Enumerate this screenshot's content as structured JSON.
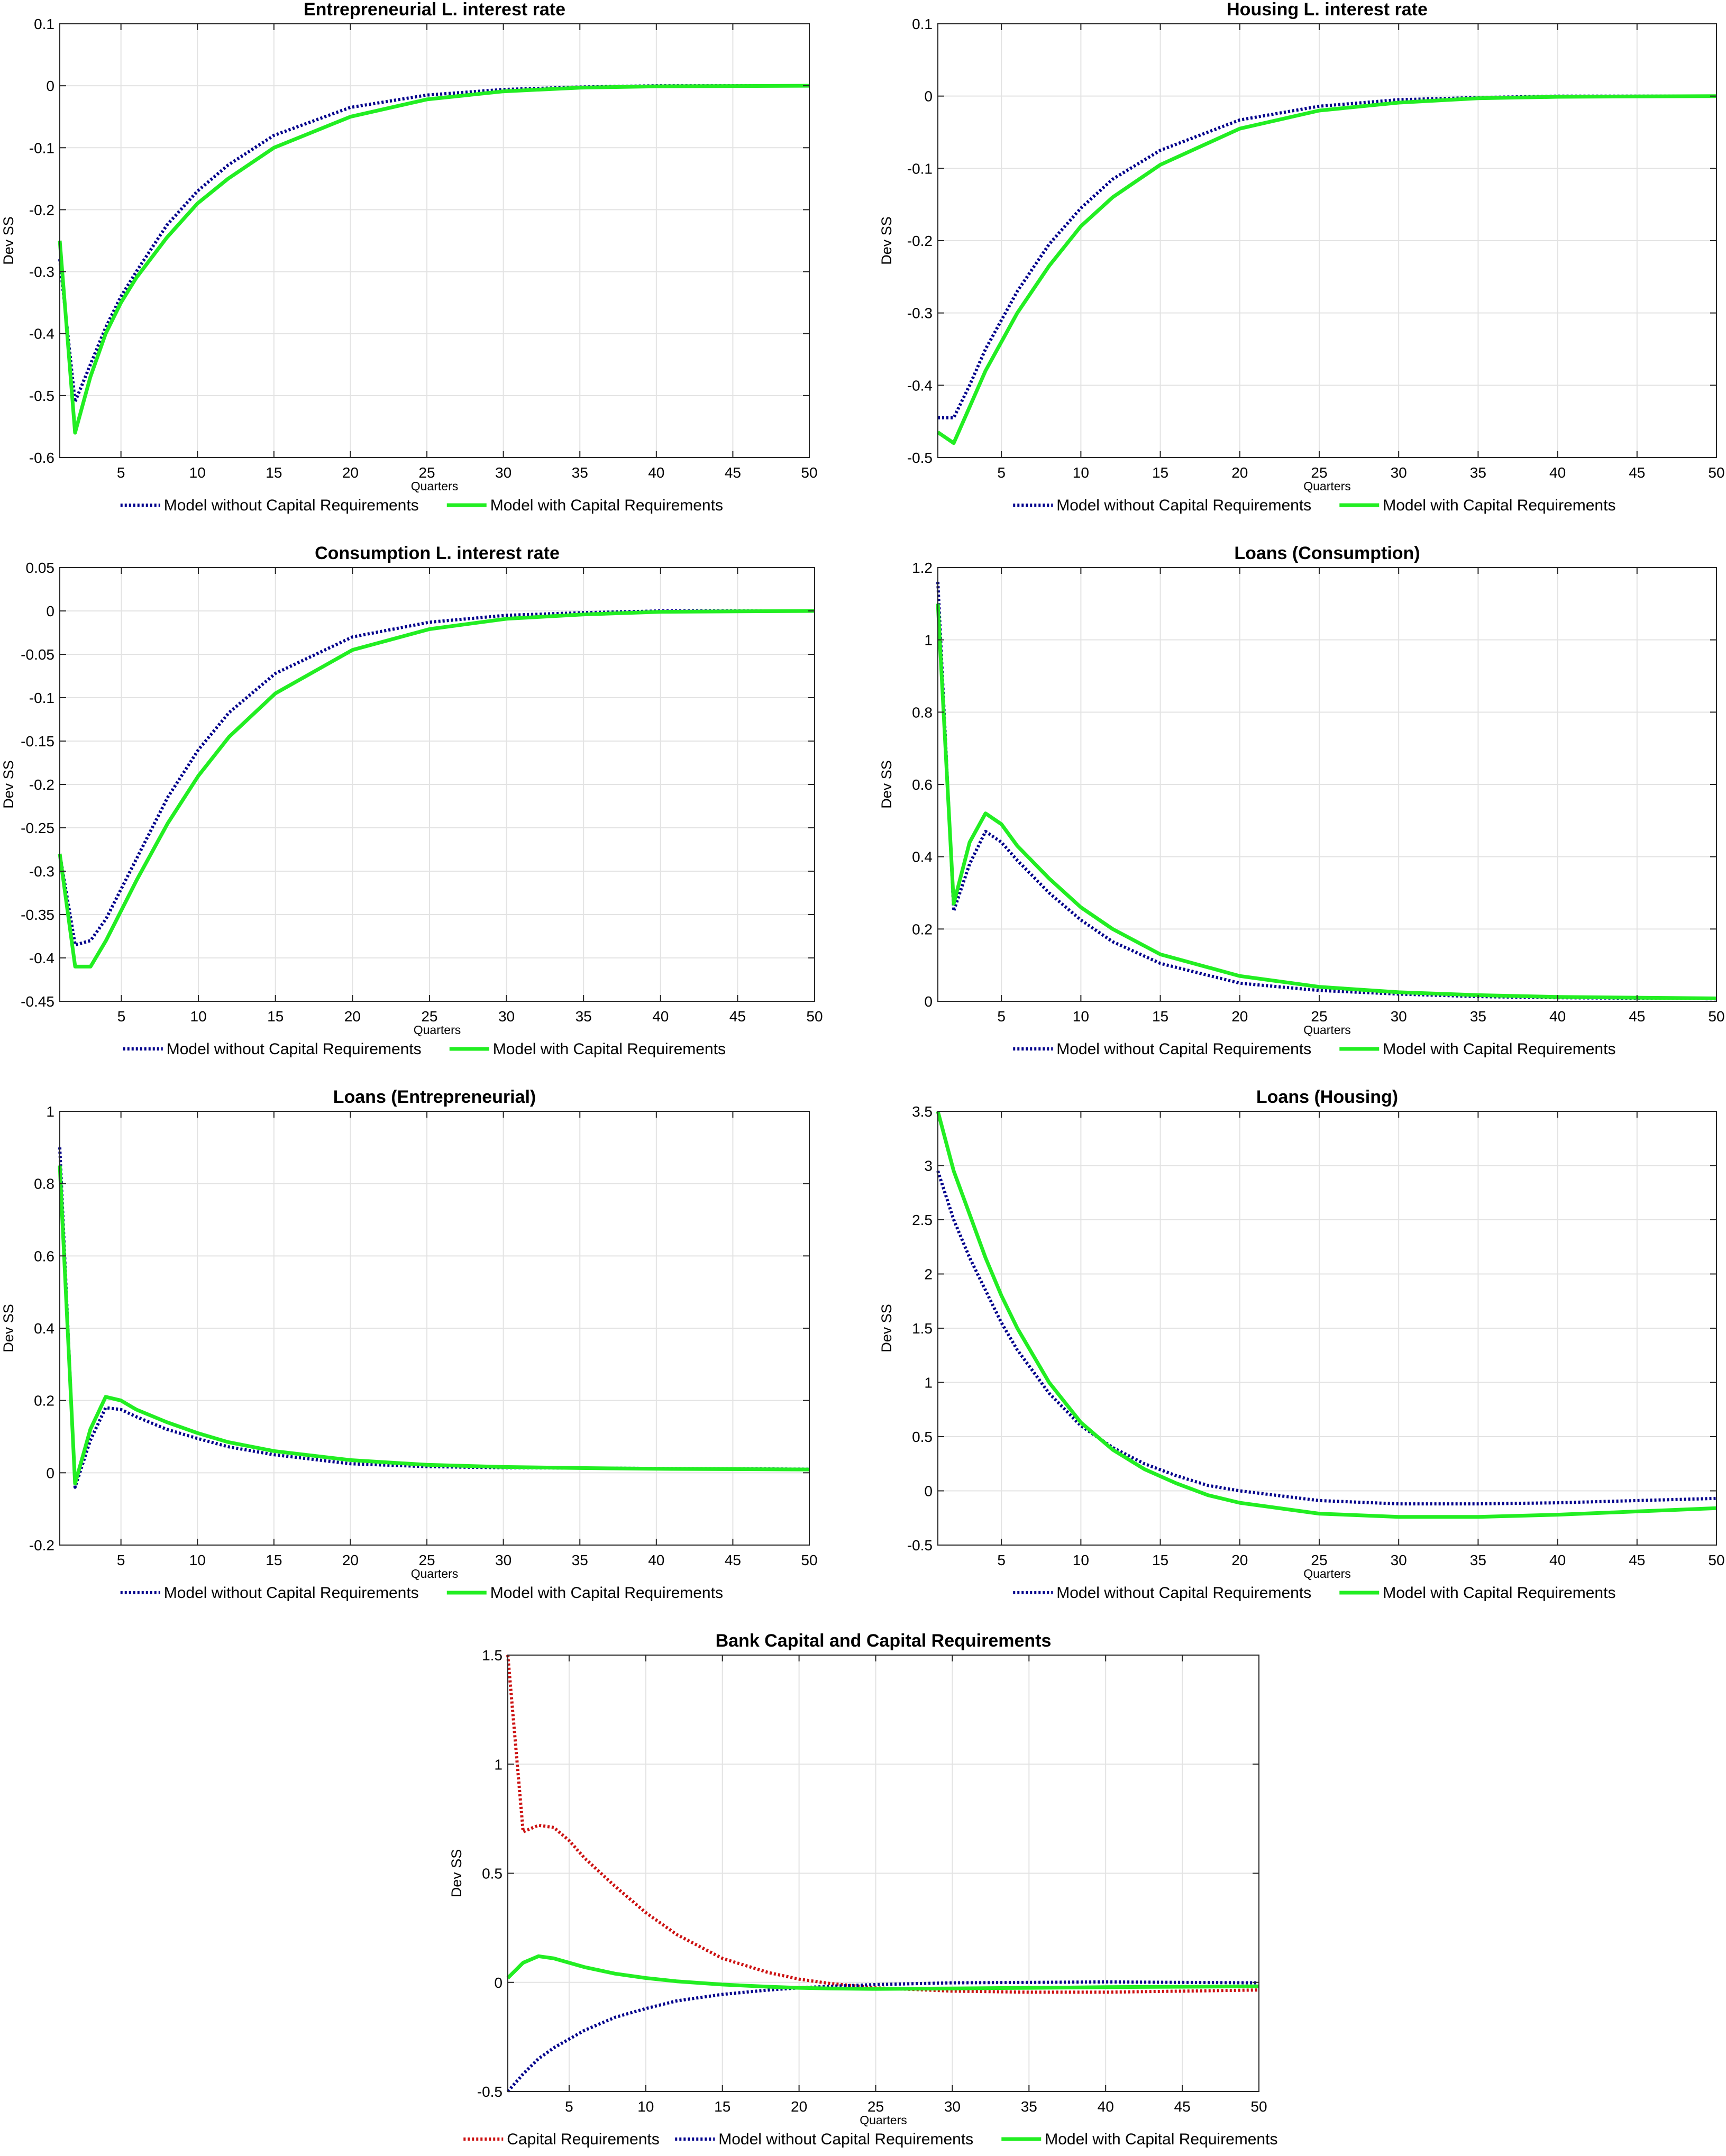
{
  "chart_data": [
    {
      "type": "line",
      "title": "Entrepreneurial L. interest rate",
      "xlabel": "Quarters",
      "ylabel": "Dev SS",
      "xlim": [
        1,
        50
      ],
      "ylim": [
        -0.6,
        0.1
      ],
      "xticks": [
        5,
        10,
        15,
        20,
        25,
        30,
        35,
        40,
        45,
        50
      ],
      "yticks": [
        0.1,
        0,
        -0.1,
        -0.2,
        -0.3,
        -0.4,
        -0.5,
        -0.6
      ],
      "ytick_labels": [
        "0.1",
        "0",
        "-0.1",
        "-0.2",
        "-0.3",
        "-0.4",
        "-0.5",
        "-0.6"
      ],
      "grid": true,
      "legend": "bottom",
      "series": [
        {
          "name": "Model without Capital Requirements",
          "color": "#00008b",
          "style": "dotted",
          "x": [
            1,
            2,
            3,
            4,
            5,
            6,
            8,
            10,
            12,
            15,
            20,
            25,
            30,
            35,
            40,
            50
          ],
          "y": [
            -0.28,
            -0.51,
            -0.45,
            -0.39,
            -0.34,
            -0.3,
            -0.225,
            -0.17,
            -0.128,
            -0.08,
            -0.035,
            -0.015,
            -0.006,
            -0.002,
            0.0,
            0.0
          ]
        },
        {
          "name": "Model with Capital Requirements",
          "color": "#22ee22",
          "style": "solid",
          "x": [
            1,
            2,
            3,
            4,
            5,
            6,
            8,
            10,
            12,
            15,
            20,
            25,
            30,
            35,
            40,
            50
          ],
          "y": [
            -0.25,
            -0.56,
            -0.47,
            -0.4,
            -0.35,
            -0.31,
            -0.245,
            -0.19,
            -0.15,
            -0.1,
            -0.05,
            -0.022,
            -0.009,
            -0.003,
            -0.001,
            0.0
          ]
        }
      ]
    },
    {
      "type": "line",
      "title": "Housing L. interest rate",
      "xlabel": "Quarters",
      "ylabel": "Dev SS",
      "xlim": [
        1,
        50
      ],
      "ylim": [
        -0.5,
        0.1
      ],
      "xticks": [
        5,
        10,
        15,
        20,
        25,
        30,
        35,
        40,
        45,
        50
      ],
      "yticks": [
        0.1,
        0,
        -0.1,
        -0.2,
        -0.3,
        -0.4,
        -0.5
      ],
      "ytick_labels": [
        "0.1",
        "0",
        "-0.1",
        "-0.2",
        "-0.3",
        "-0.4",
        "-0.5"
      ],
      "grid": true,
      "legend": "bottom",
      "series": [
        {
          "name": "Model without Capital Requirements",
          "color": "#00008b",
          "style": "dotted",
          "x": [
            1,
            2,
            3,
            4,
            5,
            6,
            8,
            10,
            12,
            15,
            20,
            25,
            30,
            35,
            40,
            50
          ],
          "y": [
            -0.445,
            -0.445,
            -0.4,
            -0.35,
            -0.31,
            -0.27,
            -0.205,
            -0.155,
            -0.115,
            -0.075,
            -0.033,
            -0.014,
            -0.005,
            -0.002,
            0.0,
            0.0
          ]
        },
        {
          "name": "Model with Capital Requirements",
          "color": "#22ee22",
          "style": "solid",
          "x": [
            1,
            2,
            3,
            4,
            5,
            6,
            8,
            10,
            12,
            15,
            20,
            25,
            30,
            35,
            40,
            50
          ],
          "y": [
            -0.465,
            -0.48,
            -0.43,
            -0.38,
            -0.34,
            -0.3,
            -0.235,
            -0.18,
            -0.14,
            -0.095,
            -0.045,
            -0.02,
            -0.009,
            -0.003,
            -0.001,
            0.0
          ]
        }
      ]
    },
    {
      "type": "line",
      "title": "Consumption L. interest rate",
      "xlabel": "Quarters",
      "ylabel": "Dev SS",
      "xlim": [
        1,
        50
      ],
      "ylim": [
        -0.45,
        0.05
      ],
      "xticks": [
        5,
        10,
        15,
        20,
        25,
        30,
        35,
        40,
        45,
        50
      ],
      "yticks": [
        0.05,
        0,
        -0.05,
        -0.1,
        -0.15,
        -0.2,
        -0.25,
        -0.3,
        -0.35,
        -0.4,
        -0.45
      ],
      "ytick_labels": [
        "0.05",
        "0",
        "-0.05",
        "-0.1",
        "-0.15",
        "-0.2",
        "-0.25",
        "-0.3",
        "-0.35",
        "-0.4",
        "-0.45"
      ],
      "grid": true,
      "legend": "bottom",
      "series": [
        {
          "name": "Model without Capital Requirements",
          "color": "#00008b",
          "style": "dotted",
          "x": [
            1,
            2,
            3,
            4,
            5,
            6,
            8,
            10,
            12,
            15,
            20,
            25,
            30,
            35,
            40,
            50
          ],
          "y": [
            -0.28,
            -0.385,
            -0.38,
            -0.355,
            -0.32,
            -0.285,
            -0.215,
            -0.16,
            -0.117,
            -0.072,
            -0.03,
            -0.013,
            -0.005,
            -0.002,
            0.0,
            0.0
          ]
        },
        {
          "name": "Model with Capital Requirements",
          "color": "#22ee22",
          "style": "solid",
          "x": [
            1,
            2,
            3,
            4,
            5,
            6,
            8,
            10,
            12,
            15,
            20,
            25,
            30,
            35,
            40,
            50
          ],
          "y": [
            -0.28,
            -0.41,
            -0.41,
            -0.38,
            -0.345,
            -0.31,
            -0.245,
            -0.19,
            -0.145,
            -0.095,
            -0.045,
            -0.021,
            -0.009,
            -0.004,
            -0.001,
            0.0
          ]
        }
      ]
    },
    {
      "type": "line",
      "title": "Loans (Consumption)",
      "xlabel": "Quarters",
      "ylabel": "Dev SS",
      "xlim": [
        1,
        50
      ],
      "ylim": [
        0,
        1.2
      ],
      "xticks": [
        5,
        10,
        15,
        20,
        25,
        30,
        35,
        40,
        45,
        50
      ],
      "yticks": [
        1.2,
        1,
        0.8,
        0.6,
        0.4,
        0.2,
        0
      ],
      "ytick_labels": [
        "1.2",
        "1",
        "0.8",
        "0.6",
        "0.4",
        "0.2",
        "0"
      ],
      "grid": true,
      "legend": "bottom",
      "series": [
        {
          "name": "Model without Capital Requirements",
          "color": "#00008b",
          "style": "dotted",
          "x": [
            1,
            2,
            3,
            4,
            5,
            6,
            8,
            10,
            12,
            15,
            20,
            25,
            30,
            35,
            40,
            50
          ],
          "y": [
            1.16,
            0.25,
            0.38,
            0.47,
            0.44,
            0.39,
            0.3,
            0.225,
            0.165,
            0.105,
            0.05,
            0.03,
            0.02,
            0.013,
            0.01,
            0.007
          ]
        },
        {
          "name": "Model with Capital Requirements",
          "color": "#22ee22",
          "style": "solid",
          "x": [
            1,
            2,
            3,
            4,
            5,
            6,
            8,
            10,
            12,
            15,
            20,
            25,
            30,
            35,
            40,
            50
          ],
          "y": [
            1.1,
            0.27,
            0.44,
            0.52,
            0.49,
            0.43,
            0.34,
            0.26,
            0.2,
            0.13,
            0.07,
            0.04,
            0.025,
            0.017,
            0.012,
            0.008
          ]
        }
      ]
    },
    {
      "type": "line",
      "title": "Loans (Entrepreneurial)",
      "xlabel": "Quarters",
      "ylabel": "Dev SS",
      "xlim": [
        1,
        50
      ],
      "ylim": [
        -0.2,
        1
      ],
      "xticks": [
        5,
        10,
        15,
        20,
        25,
        30,
        35,
        40,
        45,
        50
      ],
      "yticks": [
        1,
        0.8,
        0.6,
        0.4,
        0.2,
        0,
        -0.2
      ],
      "ytick_labels": [
        "1",
        "0.8",
        "0.6",
        "0.4",
        "0.2",
        "0",
        "-0.2"
      ],
      "grid": true,
      "legend": "bottom",
      "series": [
        {
          "name": "Model without Capital Requirements",
          "color": "#00008b",
          "style": "dotted",
          "x": [
            1,
            2,
            3,
            4,
            5,
            6,
            8,
            10,
            12,
            15,
            20,
            25,
            30,
            35,
            40,
            50
          ],
          "y": [
            0.9,
            -0.04,
            0.09,
            0.18,
            0.175,
            0.155,
            0.12,
            0.095,
            0.072,
            0.05,
            0.025,
            0.017,
            0.014,
            0.013,
            0.012,
            0.01
          ]
        },
        {
          "name": "Model with Capital Requirements",
          "color": "#22ee22",
          "style": "solid",
          "x": [
            1,
            2,
            3,
            4,
            5,
            6,
            8,
            10,
            12,
            15,
            20,
            25,
            30,
            35,
            40,
            50
          ],
          "y": [
            0.85,
            -0.03,
            0.12,
            0.21,
            0.2,
            0.175,
            0.14,
            0.11,
            0.085,
            0.06,
            0.035,
            0.022,
            0.016,
            0.013,
            0.011,
            0.009
          ]
        }
      ]
    },
    {
      "type": "line",
      "title": "Loans (Housing)",
      "xlabel": "Quarters",
      "ylabel": "Dev SS",
      "xlim": [
        1,
        50
      ],
      "ylim": [
        -0.5,
        3.5
      ],
      "xticks": [
        5,
        10,
        15,
        20,
        25,
        30,
        35,
        40,
        45,
        50
      ],
      "yticks": [
        3.5,
        3,
        2.5,
        2,
        1.5,
        1,
        0.5,
        0,
        -0.5
      ],
      "ytick_labels": [
        "3.5",
        "3",
        "2.5",
        "2",
        "1.5",
        "1",
        "0.5",
        "0",
        "-0.5"
      ],
      "grid": true,
      "legend": "bottom",
      "series": [
        {
          "name": "Model without Capital Requirements",
          "color": "#00008b",
          "style": "dotted",
          "x": [
            1,
            2,
            3,
            4,
            5,
            6,
            8,
            10,
            12,
            14,
            16,
            18,
            20,
            25,
            30,
            35,
            40,
            45,
            50
          ],
          "y": [
            2.95,
            2.5,
            2.15,
            1.85,
            1.55,
            1.3,
            0.9,
            0.6,
            0.4,
            0.25,
            0.14,
            0.05,
            0.0,
            -0.09,
            -0.12,
            -0.12,
            -0.11,
            -0.09,
            -0.07
          ]
        },
        {
          "name": "Model with Capital Requirements",
          "color": "#22ee22",
          "style": "solid",
          "x": [
            1,
            2,
            3,
            4,
            5,
            6,
            8,
            10,
            12,
            14,
            16,
            18,
            20,
            25,
            30,
            35,
            40,
            45,
            50
          ],
          "y": [
            3.5,
            2.95,
            2.55,
            2.15,
            1.8,
            1.5,
            1.0,
            0.63,
            0.38,
            0.2,
            0.07,
            -0.04,
            -0.11,
            -0.21,
            -0.24,
            -0.24,
            -0.22,
            -0.19,
            -0.16
          ]
        }
      ]
    },
    {
      "type": "line",
      "title": "Bank Capital and Capital Requirements",
      "xlabel": "Quarters",
      "ylabel": "Dev SS",
      "xlim": [
        1,
        50
      ],
      "ylim": [
        -0.5,
        1.5
      ],
      "xticks": [
        5,
        10,
        15,
        20,
        25,
        30,
        35,
        40,
        45,
        50
      ],
      "yticks": [
        1.5,
        1,
        0.5,
        0,
        -0.5
      ],
      "ytick_labels": [
        "1.5",
        "1",
        "0.5",
        "0",
        "-0.5"
      ],
      "grid": true,
      "legend": "bottom",
      "series": [
        {
          "name": "Capital Requirements",
          "color": "#cc1111",
          "style": "dotted",
          "x": [
            1,
            2,
            3,
            4,
            5,
            6,
            8,
            10,
            12,
            15,
            18,
            20,
            22,
            25,
            30,
            35,
            40,
            45,
            50
          ],
          "y": [
            1.5,
            0.69,
            0.72,
            0.71,
            0.65,
            0.57,
            0.44,
            0.32,
            0.22,
            0.11,
            0.045,
            0.015,
            -0.005,
            -0.025,
            -0.04,
            -0.045,
            -0.045,
            -0.04,
            -0.035
          ]
        },
        {
          "name": "Model without Capital Requirements",
          "color": "#00008b",
          "style": "dotted",
          "x": [
            1,
            2,
            3,
            4,
            5,
            6,
            8,
            10,
            12,
            15,
            18,
            20,
            22,
            25,
            30,
            35,
            40,
            45,
            50
          ],
          "y": [
            -0.5,
            -0.42,
            -0.35,
            -0.3,
            -0.26,
            -0.22,
            -0.16,
            -0.12,
            -0.085,
            -0.055,
            -0.035,
            -0.025,
            -0.018,
            -0.01,
            -0.002,
            0.0,
            0.002,
            0.0,
            -0.002
          ]
        },
        {
          "name": "Model with Capital Requirements",
          "color": "#22ee22",
          "style": "solid",
          "x": [
            1,
            2,
            3,
            4,
            5,
            6,
            8,
            10,
            12,
            15,
            18,
            20,
            22,
            25,
            30,
            35,
            40,
            45,
            50
          ],
          "y": [
            0.02,
            0.09,
            0.12,
            0.11,
            0.09,
            0.07,
            0.04,
            0.02,
            0.005,
            -0.01,
            -0.02,
            -0.025,
            -0.028,
            -0.03,
            -0.028,
            -0.025,
            -0.022,
            -0.02,
            -0.018
          ]
        }
      ]
    }
  ]
}
